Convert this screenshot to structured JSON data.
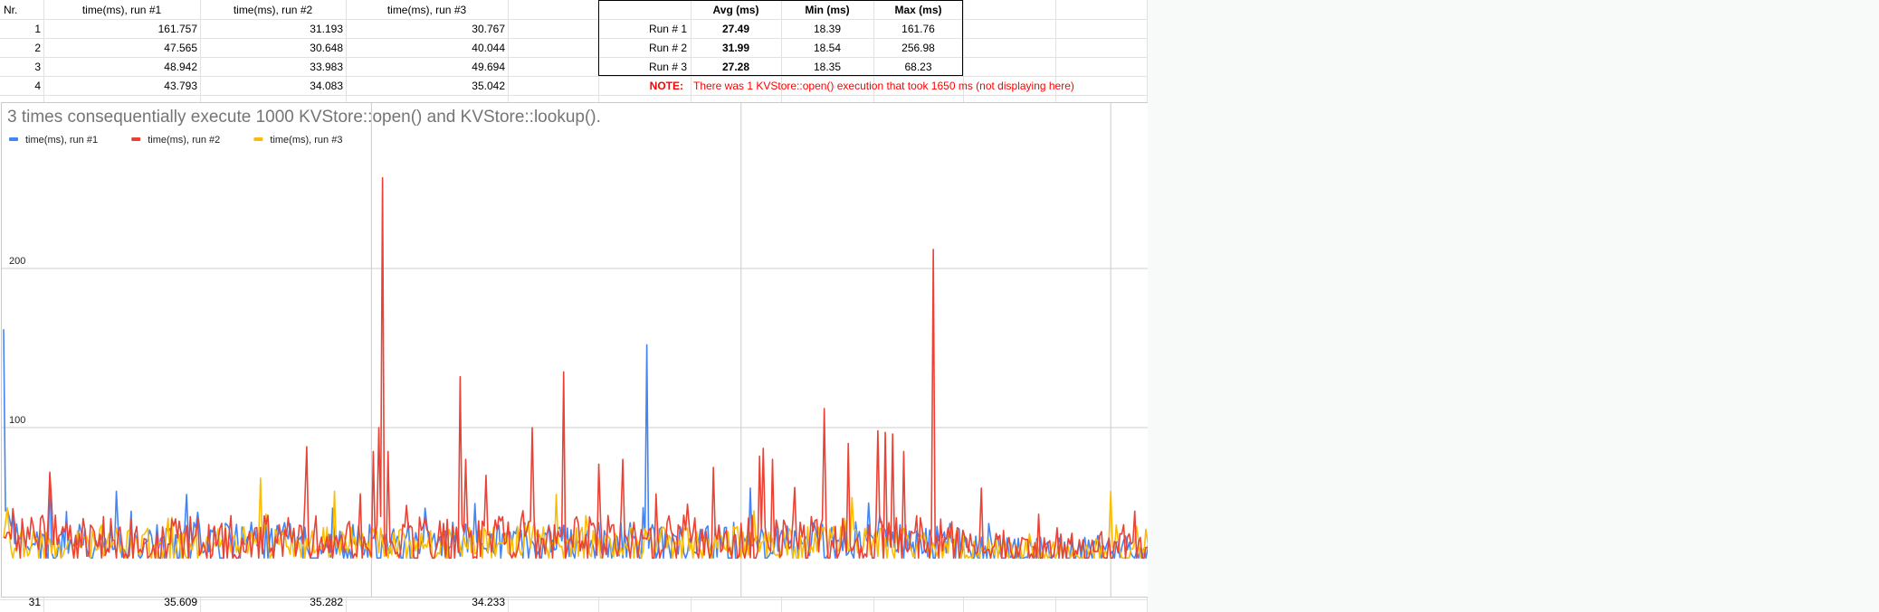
{
  "table": {
    "headers": [
      "Nr.",
      "time(ms), run #1",
      "time(ms), run #2",
      "time(ms), run #3"
    ],
    "rows": [
      [
        "1",
        "161.757",
        "31.193",
        "30.767"
      ],
      [
        "2",
        "47.565",
        "30.648",
        "40.044"
      ],
      [
        "3",
        "48.942",
        "33.983",
        "49.694"
      ],
      [
        "4",
        "43.793",
        "34.083",
        "35.042"
      ]
    ],
    "bottom_row": [
      "31",
      "35.609",
      "35.282",
      "34.233"
    ]
  },
  "stats": {
    "headers": [
      "Avg (ms)",
      "Min (ms)",
      "Max (ms)"
    ],
    "rows": [
      {
        "label": "Run # 1",
        "avg": "27.49",
        "min": "18.39",
        "max": "161.76"
      },
      {
        "label": "Run # 2",
        "avg": "31.99",
        "min": "18.54",
        "max": "256.98"
      },
      {
        "label": "Run # 3",
        "avg": "27.28",
        "min": "18.35",
        "max": "68.23"
      }
    ],
    "note_label": "NOTE:",
    "note_text": "There was 1 KVStore::open() execution that took 1650 ms (not displaying here)"
  },
  "colors": {
    "run1": "#4285f4",
    "run2": "#ea4335",
    "run3": "#fbbc04",
    "title": "#757575"
  },
  "chart_data": {
    "type": "line",
    "title": "3 times consequentially execute 1000 KVStore::open() and KVStore::lookup().",
    "xlabel": "",
    "ylabel": "time(ms)",
    "xlim": [
      1,
      1000
    ],
    "ylim": [
      0,
      250
    ],
    "grid": true,
    "legend": "top-left",
    "xticks": [
      200,
      400,
      600,
      800
    ],
    "yticks": [
      100,
      200
    ],
    "series": [
      {
        "name": "time(ms), run #1",
        "color": "#4285f4",
        "baseline": 27.5,
        "noise": 13,
        "spikes": [
          [
            1,
            161.76
          ],
          [
            2,
            47.6
          ],
          [
            3,
            48.9
          ],
          [
            4,
            43.8
          ],
          [
            349,
            152
          ],
          [
            26,
            70
          ],
          [
            62,
            60
          ],
          [
            100,
            58
          ],
          [
            405,
            62
          ],
          [
            780,
            62
          ],
          [
            793,
            60
          ],
          [
            858,
            58
          ],
          [
            910,
            62
          ],
          [
            935,
            55
          ]
        ]
      },
      {
        "name": "time(ms), run #2",
        "color": "#ea4335",
        "baseline": 29,
        "noise": 16,
        "spikes": [
          [
            1,
            31.2
          ],
          [
            2,
            30.6
          ],
          [
            3,
            34.0
          ],
          [
            4,
            34.1
          ],
          [
            26,
            72
          ],
          [
            165,
            88
          ],
          [
            201,
            85
          ],
          [
            204,
            100
          ],
          [
            206,
            256.98
          ],
          [
            209,
            85
          ],
          [
            248,
            132
          ],
          [
            251,
            80
          ],
          [
            262,
            70
          ],
          [
            287,
            100
          ],
          [
            304,
            135
          ],
          [
            323,
            77
          ],
          [
            336,
            80
          ],
          [
            385,
            75
          ],
          [
            410,
            82
          ],
          [
            412,
            87
          ],
          [
            417,
            80
          ],
          [
            445,
            112
          ],
          [
            458,
            90
          ],
          [
            474,
            98
          ],
          [
            478,
            97
          ],
          [
            482,
            96
          ],
          [
            488,
            85
          ],
          [
            504,
            212
          ],
          [
            530,
            62
          ],
          [
            870,
            62
          ],
          [
            955,
            65
          ]
        ]
      },
      {
        "name": "time(ms), run #3",
        "color": "#fbbc04",
        "baseline": 27,
        "noise": 11,
        "spikes": [
          [
            1,
            30.8
          ],
          [
            2,
            40.0
          ],
          [
            3,
            49.7
          ],
          [
            4,
            35.0
          ],
          [
            140,
            68.23
          ],
          [
            180,
            60
          ],
          [
            300,
            58
          ],
          [
            460,
            56
          ],
          [
            600,
            60
          ],
          [
            827,
            68
          ],
          [
            720,
            55
          ],
          [
            985,
            58
          ]
        ]
      }
    ]
  }
}
